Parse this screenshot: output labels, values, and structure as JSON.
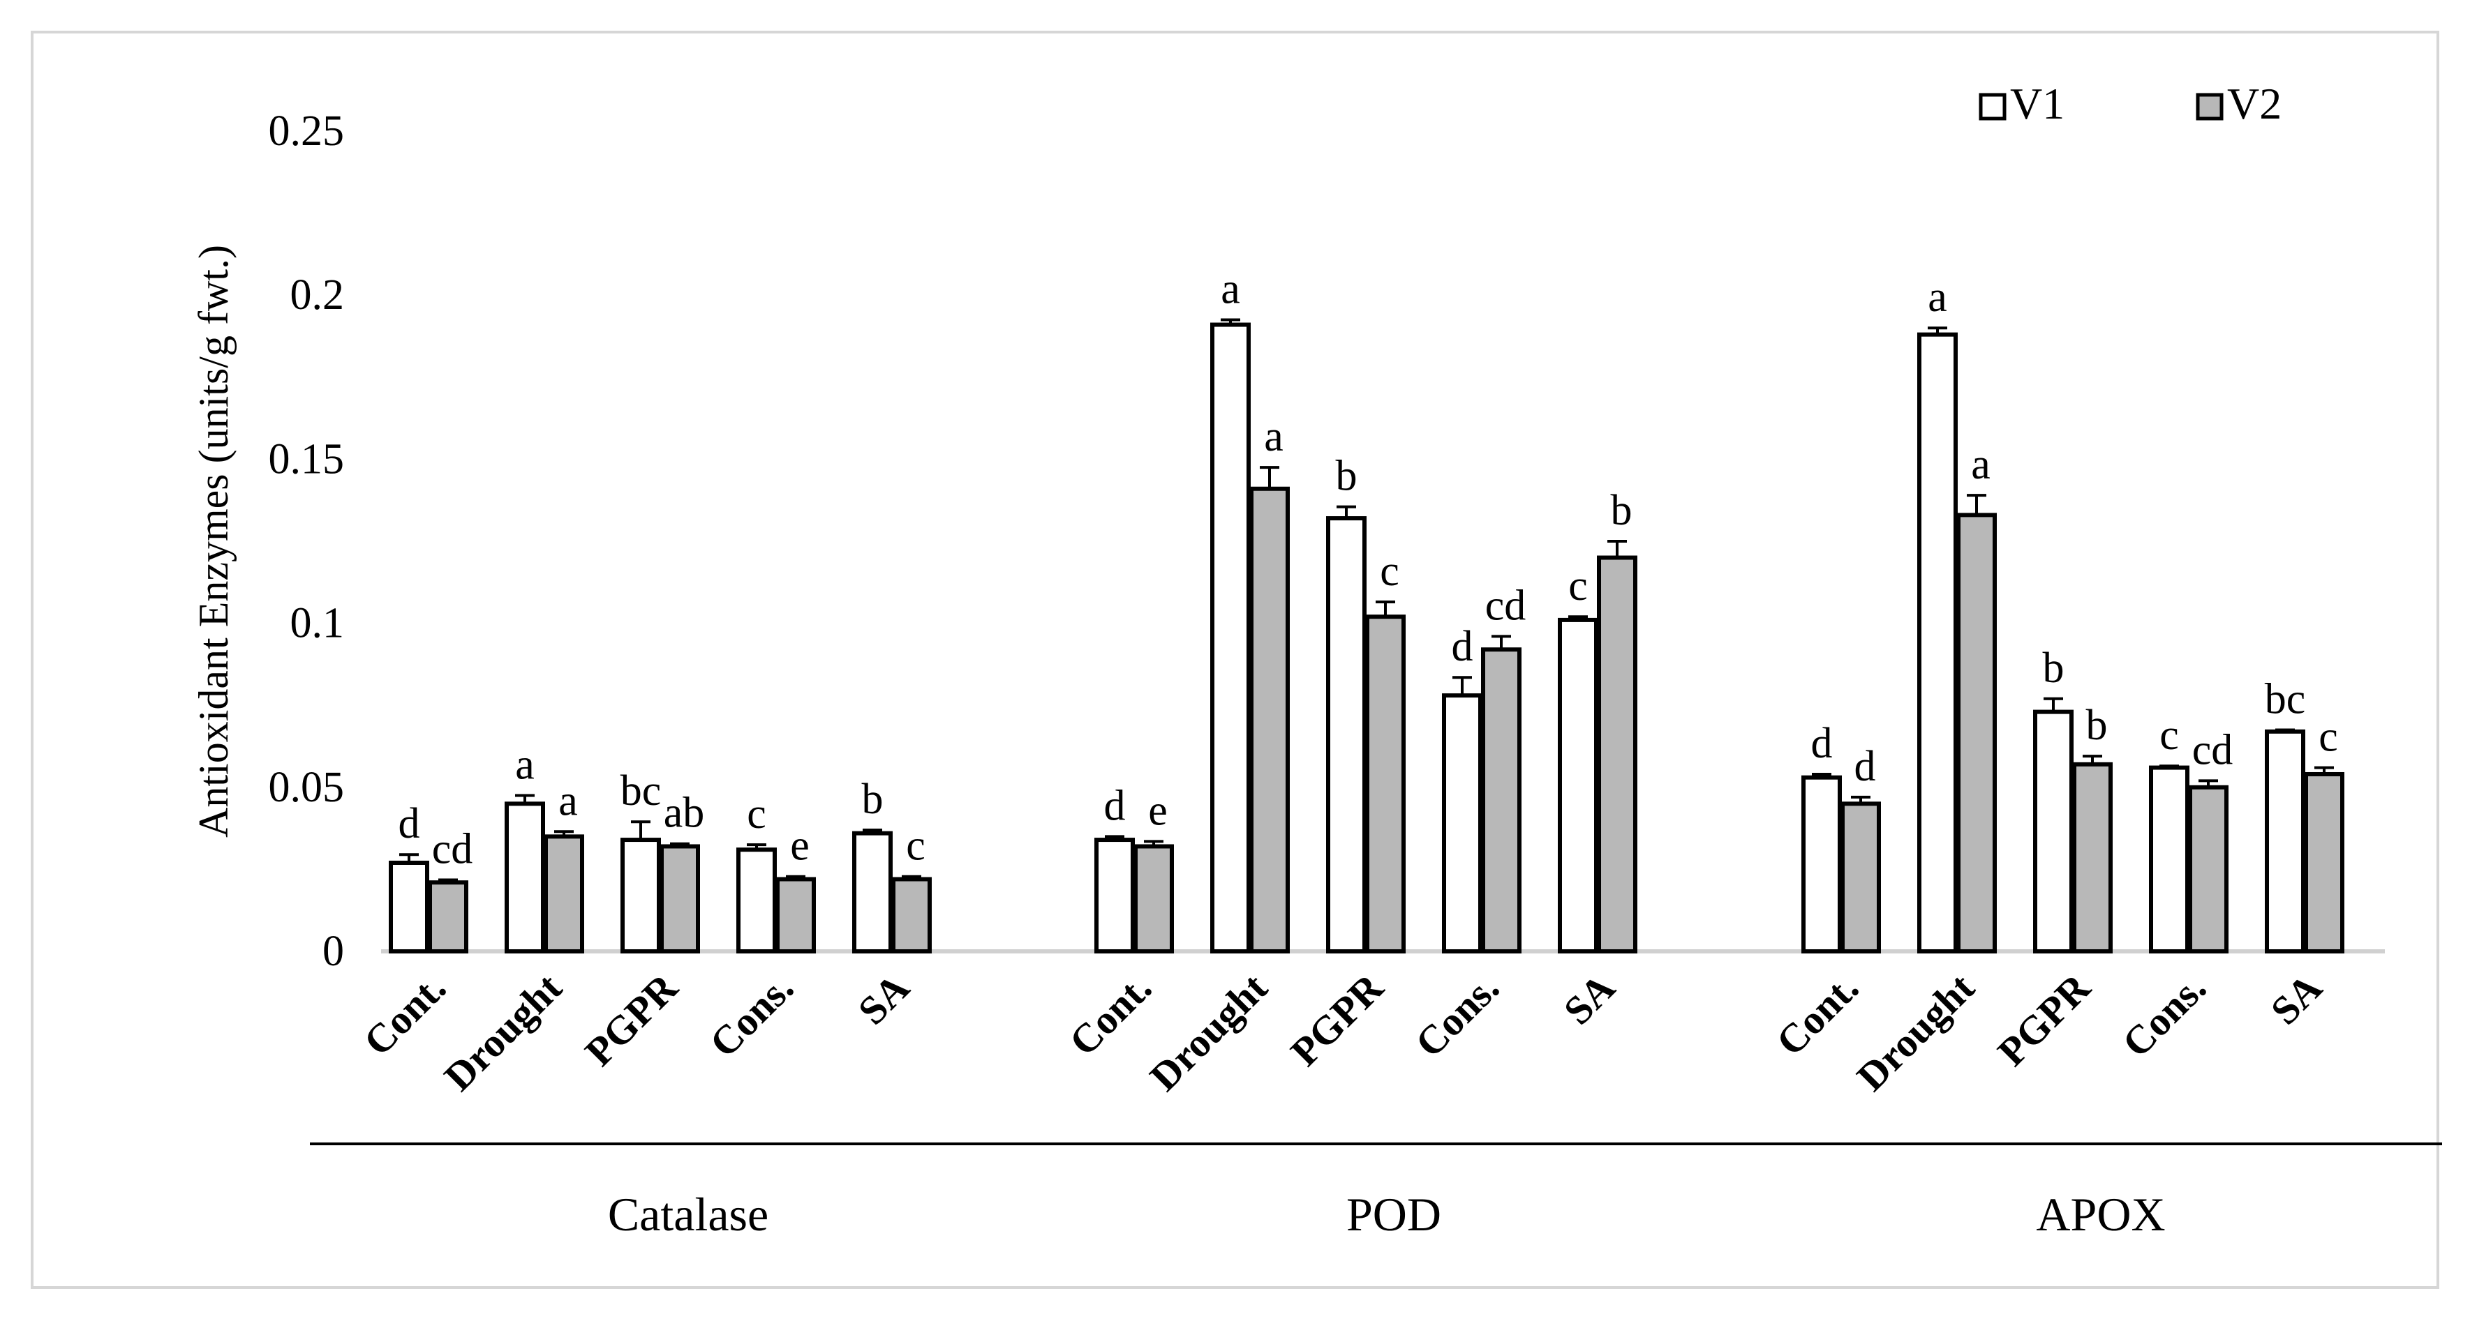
{
  "chart_data": {
    "type": "bar",
    "ylabel": "Antioxidant Enzymes (units/g fwt.)",
    "ylim": [
      0,
      0.25
    ],
    "yticks": [
      0,
      0.05,
      0.1,
      0.15,
      0.2,
      0.25
    ],
    "ytick_labels": [
      "0",
      "0.05",
      "0.1",
      "0.15",
      "0.2",
      "0.25"
    ],
    "legend": {
      "position": "top-right"
    },
    "series": [
      {
        "name": "V1",
        "fill": "#ffffff"
      },
      {
        "name": "V2",
        "fill": "#b8b8b8"
      }
    ],
    "groups": [
      {
        "name": "Catalase",
        "categories": [
          "Cont.",
          "Drought",
          "PGPR",
          "Cons.",
          "SA"
        ],
        "V1": [
          0.027,
          0.045,
          0.034,
          0.031,
          0.036
        ],
        "V1_err": [
          0.0025,
          0.0025,
          0.0055,
          0.0015,
          0.001
        ],
        "V2": [
          0.021,
          0.035,
          0.032,
          0.022,
          0.022
        ],
        "V2_err": [
          0.0008,
          0.0015,
          0.0008,
          0.0008,
          0.0008
        ],
        "V1_letters": [
          "d",
          "a",
          "bc",
          "c",
          "b"
        ],
        "V2_letters": [
          "cd",
          "a",
          "ab",
          "e",
          "c"
        ]
      },
      {
        "name": "POD",
        "categories": [
          "Cont.",
          "Drought",
          "PGPR",
          "Cons.",
          "SA"
        ],
        "V1": [
          0.034,
          0.191,
          0.132,
          0.078,
          0.101
        ],
        "V1_err": [
          0.001,
          0.0015,
          0.0035,
          0.0055,
          0.001
        ],
        "V2": [
          0.032,
          0.141,
          0.102,
          0.092,
          0.12
        ],
        "V2_err": [
          0.0015,
          0.0065,
          0.0045,
          0.004,
          0.005
        ],
        "V1_letters": [
          "d",
          "a",
          "b",
          "d",
          "c"
        ],
        "V2_letters": [
          "e",
          "a",
          "c",
          "cd",
          "b"
        ]
      },
      {
        "name": "APOX",
        "categories": [
          "Cont.",
          "Drought",
          "PGPR",
          "Cons.",
          "SA"
        ],
        "V1": [
          0.053,
          0.188,
          0.073,
          0.056,
          0.067
        ],
        "V1_err": [
          0.001,
          0.002,
          0.004,
          0.0005,
          0.0005
        ],
        "V2": [
          0.045,
          0.133,
          0.057,
          0.05,
          0.054
        ],
        "V2_err": [
          0.002,
          0.006,
          0.0025,
          0.002,
          0.002
        ],
        "V1_letters": [
          "d",
          "a",
          "b",
          "c",
          "bc"
        ],
        "V2_letters": [
          "d",
          "a",
          "b",
          "cd",
          "c"
        ]
      }
    ]
  }
}
